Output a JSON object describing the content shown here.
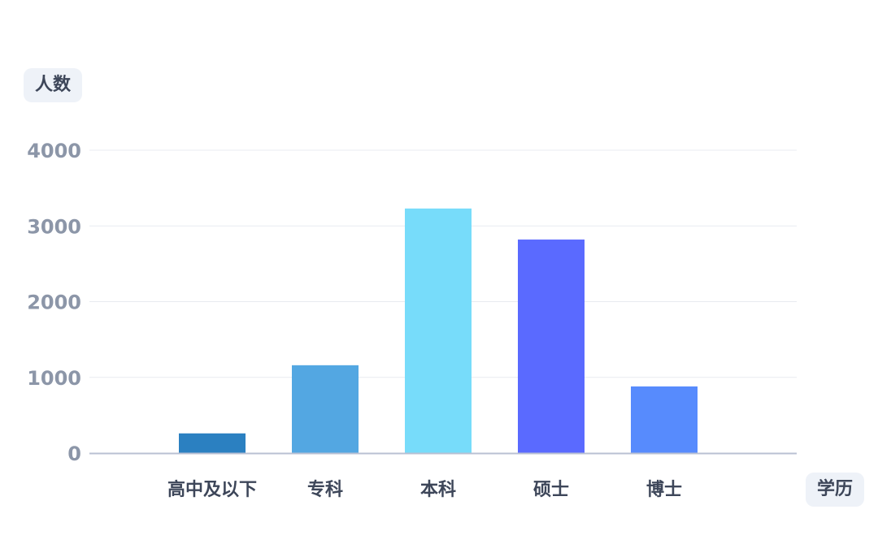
{
  "chart_data": {
    "type": "bar",
    "ylabel": "人数",
    "xlabel": "学历",
    "categories": [
      "高中及以下",
      "专科",
      "本科",
      "硕士",
      "博士"
    ],
    "values": [
      260,
      1160,
      3230,
      2820,
      880
    ],
    "ylim": [
      0,
      4000
    ],
    "yticks": [
      0,
      1000,
      2000,
      3000,
      4000
    ],
    "grid": true,
    "bar_colors": [
      "#2b80c1",
      "#53a7e2",
      "#77dcfa",
      "#5a6aff",
      "#578bfd"
    ],
    "grid_color": "#e8ebf0",
    "axis_color": "#b9c0d3"
  }
}
